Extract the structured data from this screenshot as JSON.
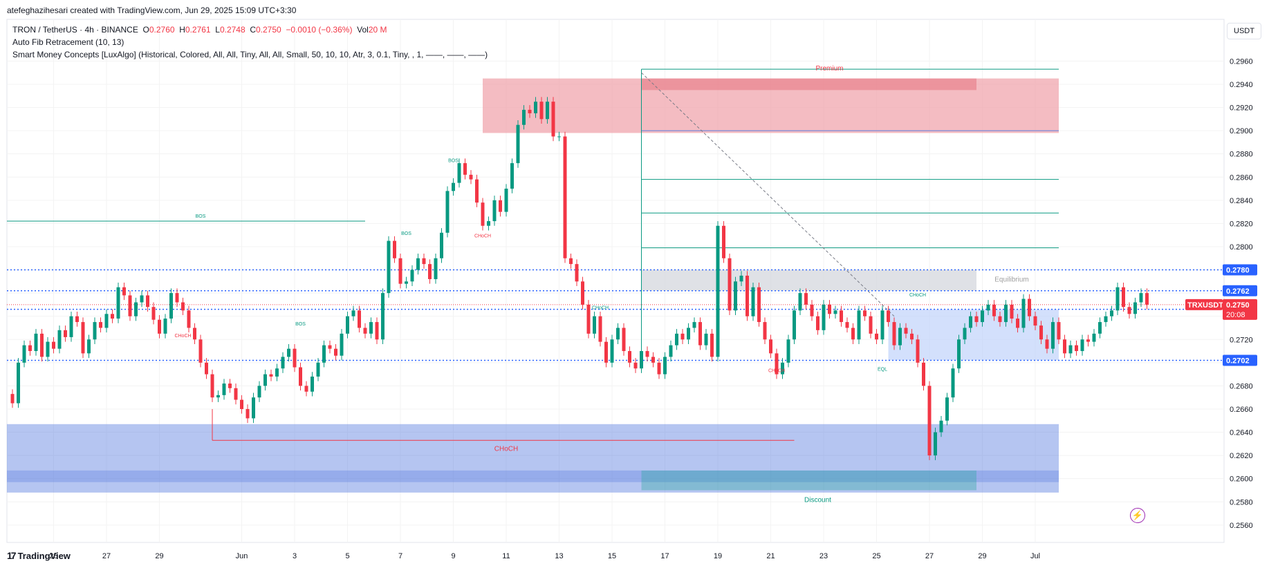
{
  "header": {
    "author_line": "atefeghazihesari created with TradingView.com, Jun 29, 2025 15:09 UTC+3:30"
  },
  "legend": {
    "symbol": "TRON / TetherUS · 4h · BINANCE",
    "o_label": "O",
    "o_value": "0.2760",
    "h_label": "H",
    "h_value": "0.2761",
    "l_label": "L",
    "l_value": "0.2748",
    "c_label": "C",
    "c_value": "0.2750",
    "change": "−0.0010 (−0.36%)",
    "vol_label": "Vol",
    "vol_value": "20 M",
    "indicator1": "Auto Fib Retracement (10, 13)",
    "indicator2": "Smart Money Concepts [LuxAlgo] (Historical, Colored, All, All, Tiny, All, All, Small, 50, 10, 10, Atr, 3, 0.1, Tiny, , 1, ——, ——, ——)"
  },
  "currency_button": "USDT",
  "footer": {
    "brand": "TradingView",
    "logo": "17"
  },
  "colors": {
    "up": "#089981",
    "down": "#f23645",
    "zone_blue": "#5b7fe0",
    "zone_red": "#f0a6ad",
    "axis_text": "#131722"
  },
  "chart_data": {
    "type": "candlestick",
    "symbol": "TRXUSDT",
    "ylim": [
      0.2545,
      0.2965
    ],
    "y_ticks": [
      "0.2960",
      "0.2940",
      "0.2920",
      "0.2900",
      "0.2880",
      "0.2860",
      "0.2840",
      "0.2820",
      "0.2800",
      "0.2780",
      "0.2760",
      "0.2740",
      "0.2720",
      "0.2700",
      "0.2680",
      "0.2660",
      "0.2640",
      "0.2620",
      "0.2600",
      "0.2580",
      "0.2560"
    ],
    "x_ticks": [
      {
        "label": "25",
        "i": 7
      },
      {
        "label": "27",
        "i": 16
      },
      {
        "label": "29",
        "i": 25
      },
      {
        "label": "Jun",
        "i": 39
      },
      {
        "label": "3",
        "i": 48
      },
      {
        "label": "5",
        "i": 57
      },
      {
        "label": "7",
        "i": 66
      },
      {
        "label": "9",
        "i": 75
      },
      {
        "label": "11",
        "i": 84
      },
      {
        "label": "13",
        "i": 93
      },
      {
        "label": "15",
        "i": 102
      },
      {
        "label": "17",
        "i": 111
      },
      {
        "label": "19",
        "i": 120
      },
      {
        "label": "21",
        "i": 129
      },
      {
        "label": "23",
        "i": 138
      },
      {
        "label": "25",
        "i": 147
      },
      {
        "label": "27",
        "i": 156
      },
      {
        "label": "29",
        "i": 165
      },
      {
        "label": "Jul",
        "i": 174
      }
    ],
    "closes": [
      0.2665,
      0.27,
      0.2715,
      0.271,
      0.2725,
      0.2705,
      0.2718,
      0.2712,
      0.2728,
      0.2722,
      0.274,
      0.2735,
      0.2708,
      0.272,
      0.2735,
      0.273,
      0.2742,
      0.2738,
      0.2765,
      0.2758,
      0.274,
      0.2752,
      0.2758,
      0.2748,
      0.2737,
      0.2725,
      0.2738,
      0.276,
      0.2752,
      0.2745,
      0.273,
      0.272,
      0.27,
      0.269,
      0.267,
      0.2672,
      0.2682,
      0.2678,
      0.2668,
      0.266,
      0.2652,
      0.267,
      0.268,
      0.269,
      0.2688,
      0.2695,
      0.2705,
      0.2712,
      0.2696,
      0.268,
      0.2675,
      0.2688,
      0.27,
      0.2715,
      0.2712,
      0.2706,
      0.2725,
      0.274,
      0.2745,
      0.273,
      0.2725,
      0.2735,
      0.272,
      0.276,
      0.2805,
      0.279,
      0.2768,
      0.277,
      0.278,
      0.279,
      0.2785,
      0.2772,
      0.279,
      0.2812,
      0.2848,
      0.2855,
      0.2872,
      0.2862,
      0.2858,
      0.2838,
      0.2818,
      0.2822,
      0.284,
      0.283,
      0.285,
      0.2872,
      0.2905,
      0.2918,
      0.2915,
      0.2925,
      0.291,
      0.2925,
      0.2895,
      0.2895,
      0.279,
      0.2785,
      0.277,
      0.275,
      0.2725,
      0.274,
      0.2718,
      0.27,
      0.272,
      0.273,
      0.271,
      0.27,
      0.2695,
      0.271,
      0.2705,
      0.27,
      0.269,
      0.2705,
      0.2715,
      0.2725,
      0.272,
      0.273,
      0.2735,
      0.2715,
      0.2725,
      0.2705,
      0.2818,
      0.279,
      0.2745,
      0.277,
      0.2775,
      0.274,
      0.2765,
      0.2735,
      0.272,
      0.2708,
      0.269,
      0.27,
      0.272,
      0.2745,
      0.276,
      0.275,
      0.274,
      0.2728,
      0.275,
      0.2742,
      0.2745,
      0.2735,
      0.273,
      0.272,
      0.2745,
      0.274,
      0.2725,
      0.272,
      0.2745,
      0.2735,
      0.2715,
      0.273,
      0.2725,
      0.272,
      0.27,
      0.268,
      0.262,
      0.264,
      0.265,
      0.267,
      0.2695,
      0.272,
      0.273,
      0.274,
      0.2735,
      0.2745,
      0.275,
      0.274,
      0.2735,
      0.275,
      0.2738,
      0.273,
      0.2755,
      0.274,
      0.2732,
      0.272,
      0.2712,
      0.2735,
      0.272,
      0.2708,
      0.2715,
      0.271,
      0.272,
      0.2718,
      0.2725,
      0.2735,
      0.274,
      0.2745,
      0.2765,
      0.2748,
      0.2742,
      0.2752,
      0.276,
      0.275
    ],
    "horizontal_levels": [
      {
        "price": 0.278,
        "label": "0.2780",
        "style": "dotted",
        "color": "#2962ff"
      },
      {
        "price": 0.2762,
        "label": "0.2762",
        "style": "dotted",
        "color": "#2962ff"
      },
      {
        "price": 0.2746,
        "label": "0.2746",
        "style": "dotted",
        "color": "#2962ff"
      },
      {
        "price": 0.2702,
        "label": "0.2702",
        "style": "dotted",
        "color": "#2962ff"
      }
    ],
    "last_price": {
      "label": "TRXUSDT",
      "value": "0.2750",
      "countdown": "20:08"
    },
    "annotations": [
      {
        "text": "BOS",
        "color": "#089981"
      },
      {
        "text": "BOS",
        "color": "#089981"
      },
      {
        "text": "BOS",
        "color": "#089981"
      },
      {
        "text": "BOS",
        "color": "#089981"
      },
      {
        "text": "CHoCH",
        "color": "#f23645"
      },
      {
        "text": "CHoCH",
        "color": "#f23645"
      },
      {
        "text": "CHoCH",
        "color": "#f23645"
      },
      {
        "text": "CHoCH",
        "color": "#089981"
      },
      {
        "text": "CHoCH",
        "color": "#089981"
      },
      {
        "text": "EQL",
        "color": "#089981"
      },
      {
        "text": "Premium",
        "color": "#f23645"
      },
      {
        "text": "Equilibrium",
        "color": "#9e9e9e"
      },
      {
        "text": "Discount",
        "color": "#089981"
      }
    ]
  }
}
